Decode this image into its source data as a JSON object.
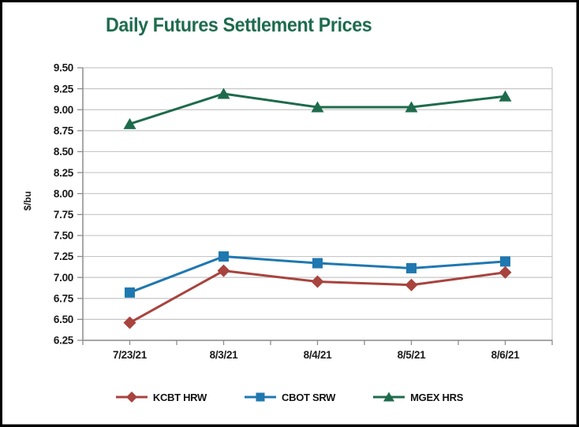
{
  "window": {
    "background": "#FFFFFF",
    "frame_border_color": "#000000"
  },
  "chart_data": {
    "type": "line",
    "title": "Daily Futures Settlement Prices",
    "xlabel": "",
    "ylabel": "$/bu",
    "categories": [
      "7/23/21",
      "8/3/21",
      "8/4/21",
      "8/5/21",
      "8/6/21"
    ],
    "series": [
      {
        "name": "KCBT HRW",
        "marker": "diamond",
        "color": "#A8433E",
        "values": [
          6.46,
          7.08,
          6.95,
          6.91,
          7.06
        ]
      },
      {
        "name": "CBOT SRW",
        "marker": "square",
        "color": "#1F78B0",
        "values": [
          6.82,
          7.25,
          7.17,
          7.11,
          7.19
        ]
      },
      {
        "name": "MGEX HRS",
        "marker": "triangle",
        "color": "#1E6B4C",
        "values": [
          8.83,
          9.19,
          9.03,
          9.03,
          9.16
        ]
      }
    ],
    "ylim": [
      6.25,
      9.5
    ],
    "ytick_step": 0.25,
    "ytick_format": "2dp",
    "grid": "horizontal",
    "legend_position": "bottom",
    "colors": {
      "title": "#1E6B4E",
      "gridline": "#C6C6C6",
      "axis": "#8C8C8C",
      "tick_label": "#1A1A1A",
      "legend_label": "#111111"
    }
  }
}
